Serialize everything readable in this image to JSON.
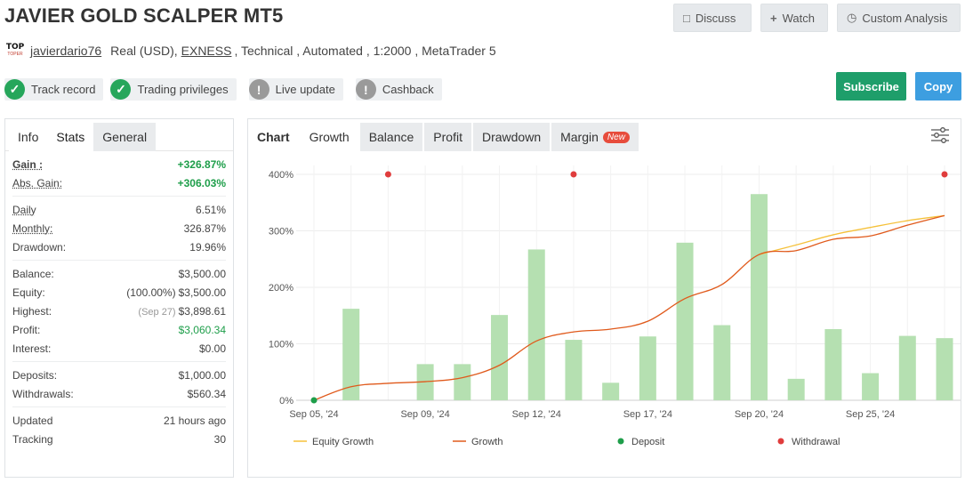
{
  "title": "JAVIER GOLD SCALPER MT5",
  "top_buttons": {
    "discuss": "Discuss",
    "watch": "Watch",
    "custom_analysis": "Custom Analysis"
  },
  "logo": {
    "line1": "TOP",
    "line2": "TOPER"
  },
  "meta": {
    "author": "javierdario76",
    "account": "Real (USD),",
    "broker": "EXNESS",
    "details": ", Technical , Automated , 1:2000 , MetaTrader 5"
  },
  "badges": [
    {
      "label": "Track record",
      "status": "ok"
    },
    {
      "label": "Trading privileges",
      "status": "ok"
    },
    {
      "label": "Live update",
      "status": "na"
    },
    {
      "label": "Cashback",
      "status": "na"
    }
  ],
  "actions": {
    "subscribe": "Subscribe",
    "copy": "Copy"
  },
  "left_tabs": [
    "Info",
    "Stats",
    "General"
  ],
  "stats": {
    "gain_label": "Gain :",
    "gain_value": "+326.87%",
    "abs_gain_label": "Abs. Gain:",
    "abs_gain_value": "+306.03%",
    "daily_label": "Daily",
    "daily_value": "6.51%",
    "monthly_label": "Monthly:",
    "monthly_value": "326.87%",
    "drawdown_label": "Drawdown:",
    "drawdown_value": "19.96%",
    "balance_label": "Balance:",
    "balance_value": "$3,500.00",
    "equity_label": "Equity:",
    "equity_pct": "(100.00%)",
    "equity_value": "$3,500.00",
    "highest_label": "Highest:",
    "highest_date": "(Sep 27)",
    "highest_value": "$3,898.61",
    "profit_label": "Profit:",
    "profit_value": "$3,060.34",
    "interest_label": "Interest:",
    "interest_value": "$0.00",
    "deposits_label": "Deposits:",
    "deposits_value": "$1,000.00",
    "withdrawals_label": "Withdrawals:",
    "withdrawals_value": "$560.34",
    "updated_label": "Updated",
    "updated_value": "21 hours ago",
    "tracking_label": "Tracking",
    "tracking_value": "30"
  },
  "chart_tabs": {
    "chart": "Chart",
    "growth": "Growth",
    "balance": "Balance",
    "profit": "Profit",
    "drawdown": "Drawdown",
    "margin": "Margin",
    "new_badge": "New"
  },
  "colors": {
    "green_accent": "#1e9e6a",
    "blue_accent": "#3d9ee0",
    "bar": "#b5e0b1",
    "growth_line": "#e05a1c",
    "equity_line": "#f5c13a",
    "deposit": "#1e9e4a",
    "withdrawal": "#e03c3c"
  },
  "chart_data": {
    "type": "bar",
    "x_tick_labels": [
      "Sep 05, '24",
      "Sep 09, '24",
      "Sep 12, '24",
      "Sep 17, '24",
      "Sep 20, '24",
      "Sep 25, '24"
    ],
    "y_tick_labels": [
      "0%",
      "100%",
      "200%",
      "300%",
      "400%"
    ],
    "ylim": [
      0,
      400
    ],
    "grid": true,
    "legend_position": "bottom",
    "series": [
      {
        "name": "Growth",
        "type": "line",
        "x": [
          0,
          1,
          2,
          3,
          4,
          5,
          6,
          7,
          8,
          9,
          10,
          11,
          12,
          13,
          14,
          15,
          16,
          17
        ],
        "values": [
          0,
          24,
          30,
          33,
          40,
          62,
          105,
          121,
          126,
          140,
          180,
          205,
          258,
          265,
          285,
          291,
          310,
          327
        ]
      },
      {
        "name": "Equity Growth",
        "type": "line",
        "x": [
          12,
          13,
          14,
          15,
          16,
          17
        ],
        "values": [
          258,
          275,
          293,
          306,
          318,
          327
        ]
      },
      {
        "name": "Deposit",
        "type": "marker",
        "x": [
          0
        ],
        "values": [
          0
        ]
      },
      {
        "name": "Withdrawal",
        "type": "marker",
        "x": [
          2,
          7,
          17
        ],
        "values": [
          400,
          400,
          400
        ]
      }
    ],
    "bars": {
      "x": [
        1,
        3,
        4,
        5,
        6,
        7,
        8,
        9,
        10,
        11,
        12,
        13,
        14,
        15,
        16,
        17
      ],
      "values": [
        162,
        64,
        64,
        151,
        267,
        107,
        31,
        113,
        279,
        133,
        365,
        38,
        126,
        48,
        114,
        110
      ]
    },
    "x_ticks_at": [
      0,
      3,
      6,
      9,
      12,
      15
    ],
    "x_max": 17
  }
}
